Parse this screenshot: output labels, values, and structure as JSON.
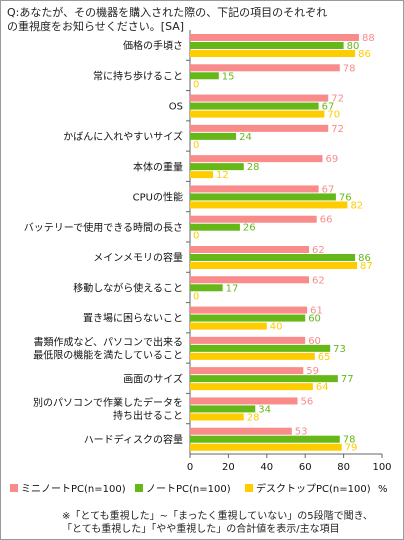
{
  "question": "Q:あなたが、その機器を購入された際の、下記の項目のそれぞれ\nの重視度をお知らせください。[SA]",
  "note": "※「とても重視した」~「まったく重視していない」の5段階で聞き、\n「とても重視した」「やや重視した」の合計値を表示/主な項目",
  "unit": "%",
  "colors": {
    "mini": "#f98b8b",
    "note": "#66b819",
    "desktop": "#ffcc00",
    "grid": "#9a9a9a"
  },
  "chart_data": {
    "type": "bar",
    "orientation": "horizontal",
    "categories": [
      "価格の手頃さ",
      "常に持ち歩けること",
      "OS",
      "かばんに入れやすいサイズ",
      "本体の重量",
      "CPUの性能",
      "バッテリーで使用できる時間の長さ",
      "メインメモリの容量",
      "移動しながら使えること",
      "置き場に困らないこと",
      "書類作成など、パソコンで出来る\n最低限の機能を満たしていること",
      "画面のサイズ",
      "別のパソコンで作業したデータを\n持ち出せること",
      "ハードディスクの容量"
    ],
    "series": [
      {
        "name": "ミニノートPC(n=100)",
        "values": [
          88,
          78,
          72,
          72,
          69,
          67,
          66,
          62,
          62,
          61,
          60,
          59,
          56,
          53
        ]
      },
      {
        "name": "ノートPC(n=100)",
        "values": [
          80,
          15,
          67,
          24,
          28,
          76,
          26,
          86,
          17,
          60,
          73,
          77,
          34,
          78
        ]
      },
      {
        "name": "デスクトップPC(n=100)",
        "values": [
          86,
          0,
          70,
          0,
          12,
          82,
          0,
          87,
          0,
          40,
          65,
          64,
          28,
          79
        ]
      }
    ],
    "xlim": [
      0,
      100
    ],
    "xticks": [
      0,
      20,
      40,
      60,
      80,
      100
    ],
    "grid": false,
    "legend": "bottom"
  }
}
